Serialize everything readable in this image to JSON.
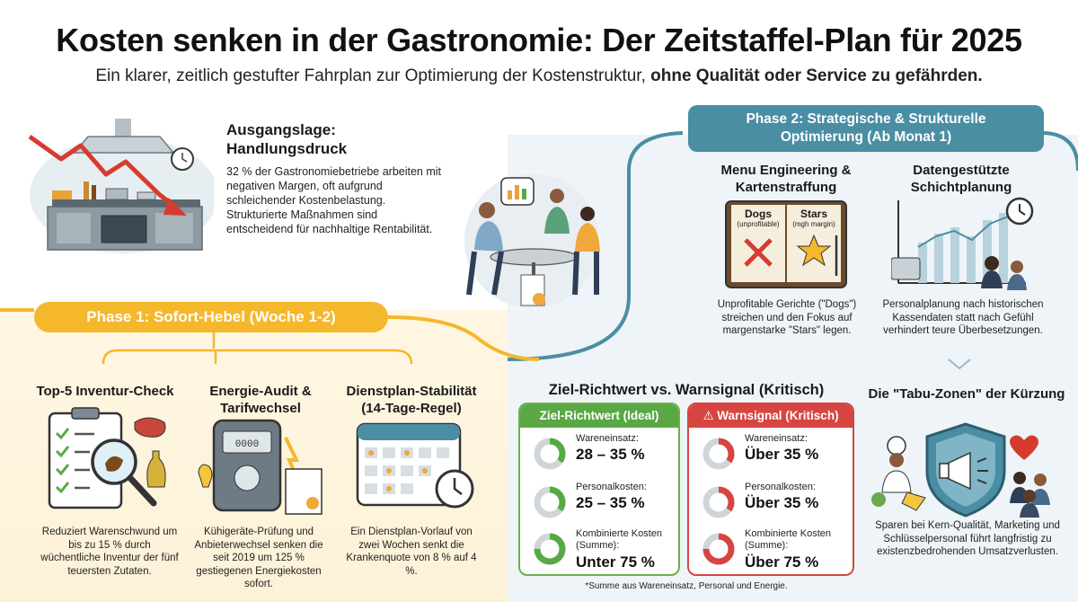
{
  "header": {
    "title": "Kosten senken in der Gastronomie: Der Zeitstaffel-Plan für 2025",
    "subtitle_plain": "Ein klarer, zeitlich gestufter Fahrplan zur Optimierung der Kostenstruktur, ",
    "subtitle_bold": "ohne Qualität oder Service zu gefährden."
  },
  "ausgangslage": {
    "title": "Ausgangslage: Handlungsdruck",
    "text": "32 % der Gastronomiebetriebe arbeiten mit negativen Margen, oft aufgrund schleichender Kostenbelastung. Strukturierte Maßnahmen sind entscheidend für nachhaltige Rentabilität."
  },
  "phase1": {
    "banner": "Phase 1: Sofort-Hebel (Woche 1-2)",
    "items": [
      {
        "head": "Top-5 Inventur-Check",
        "text": "Reduziert Warenschwund um bis zu 15 % durch wüchentliche Inventur der fünf teuersten Zutaten."
      },
      {
        "head": "Energie-Audit & Tarifwechsel",
        "text": "Kühigeräte-Prüfung und Anbieterwechsel senken die seit 2019 um 125 % gestiegenen Energiekosten sofort."
      },
      {
        "head": "Dienstplan-Stabilität (14-Tage-Regel)",
        "text": "Ein Dienstplan-Vorlauf von zwei Wochen senkt die Krankenquote von 8 % auf 4 %."
      }
    ]
  },
  "phase2": {
    "banner_line1": "Phase 2: Strategische & Strukturelle",
    "banner_line2": "Optimierung (Ab Monat 1)",
    "items": [
      {
        "head": "Menu Engineering & Kartenstraffung",
        "text": "Unprofitable Gerichte (\"Dogs\") streichen und den Fokus auf margenstarke \"Stars\" legen.",
        "menu_left": "Dogs",
        "menu_left_sub": "(unprofitable)",
        "menu_right": "Stars",
        "menu_right_sub": "(mgh margin)"
      },
      {
        "head": "Datengestützte Schichtplanung",
        "text": "Personalplanung nach historischen Kassendaten statt nach Gefühl verhindert teure Überbesetzungen."
      }
    ]
  },
  "zielwarn": {
    "title": "Ziel-Richtwert vs. Warnsignal (Kritisch)",
    "ziel_head": "Ziel-Richtwert (Ideal)",
    "warn_head": "Warnsignal (Kritisch)",
    "ziel_rows": [
      {
        "label": "Wareneinsatz:",
        "value": "28 – 35 %",
        "fill": 0.35
      },
      {
        "label": "Personalkosten:",
        "value": "25 – 35 %",
        "fill": 0.35
      },
      {
        "label": "Kombinierte Kosten (Summe):",
        "value": "Unter 75 %",
        "fill": 0.75
      }
    ],
    "warn_rows": [
      {
        "label": "Wareneinsatz:",
        "value": "Über 35 %",
        "fill": 0.35
      },
      {
        "label": "Personalkosten:",
        "value": "Über 35 %",
        "fill": 0.35
      },
      {
        "label": "Kombinierte Kosten (Summe):",
        "value": "Über 75 %",
        "fill": 0.75
      }
    ],
    "footnote": "*Summe aus Wareneinsatz, Personal und Energie."
  },
  "tabu": {
    "title": "Die \"Tabu-Zonen\" der Kürzung",
    "text": "Sparen bei Kern-Qualität, Marketing und Schlüsselpersonal führt langfristig zu existenzbedrohenden Umsatzverlusten."
  },
  "colors": {
    "phase1": "#f5b72c",
    "phase2": "#4a8ea4",
    "ok": "#5aa845",
    "warn": "#d64541"
  },
  "icons": {
    "kitchen": "kitchen-illustration",
    "meeting": "meeting-illustration",
    "inventory": "clipboard-magnifier-icon",
    "energy": "electric-meter-icon",
    "schedule": "calendar-clock-icon",
    "menu": "menu-book-icon",
    "shift": "shift-chart-icon",
    "tabu": "shield-megaphone-icon"
  }
}
